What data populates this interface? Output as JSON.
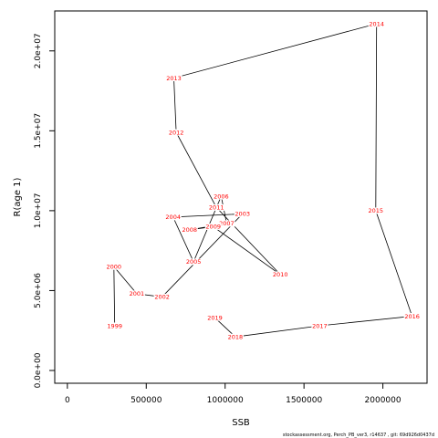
{
  "chart_data": {
    "type": "line",
    "xlabel": "SSB",
    "ylabel": "R(age 1)",
    "xlim": [
      -80000,
      2280000
    ],
    "ylim": [
      -800000,
      22500000
    ],
    "x_ticks": [
      0,
      500000,
      1000000,
      1500000,
      2000000
    ],
    "x_tick_labels": [
      "0",
      "500000",
      "1000000",
      "1500000",
      "2000000"
    ],
    "y_ticks": [
      0,
      5000000,
      10000000,
      15000000,
      20000000
    ],
    "y_tick_labels": [
      "0.0e+00",
      "5.0e+06",
      "1.0e+07",
      "1.5e+07",
      "2.0e+07"
    ],
    "grid": false,
    "line_color": "#000000",
    "label_color": "#ff0000",
    "points": [
      {
        "label": "1999",
        "x": 300000,
        "y": 2800000
      },
      {
        "label": "2000",
        "x": 295000,
        "y": 6500000
      },
      {
        "label": "2001",
        "x": 440000,
        "y": 4800000
      },
      {
        "label": "2002",
        "x": 600000,
        "y": 4600000
      },
      {
        "label": "2003",
        "x": 1110000,
        "y": 9800000
      },
      {
        "label": "2004",
        "x": 670000,
        "y": 9600000
      },
      {
        "label": "2005",
        "x": 800000,
        "y": 6800000
      },
      {
        "label": "2006",
        "x": 975000,
        "y": 10900000
      },
      {
        "label": "2007",
        "x": 1010000,
        "y": 9200000
      },
      {
        "label": "2008",
        "x": 775000,
        "y": 8800000
      },
      {
        "label": "2009",
        "x": 925000,
        "y": 9000000
      },
      {
        "label": "2010",
        "x": 1350000,
        "y": 6000000
      },
      {
        "label": "2011",
        "x": 945000,
        "y": 10200000
      },
      {
        "label": "2012",
        "x": 690000,
        "y": 14900000
      },
      {
        "label": "2013",
        "x": 675000,
        "y": 18300000
      },
      {
        "label": "2014",
        "x": 1960000,
        "y": 21700000
      },
      {
        "label": "2015",
        "x": 1955000,
        "y": 10000000
      },
      {
        "label": "2016",
        "x": 2185000,
        "y": 3400000
      },
      {
        "label": "2017",
        "x": 1600000,
        "y": 2800000
      },
      {
        "label": "2018",
        "x": 1065000,
        "y": 2100000
      },
      {
        "label": "2019",
        "x": 935000,
        "y": 3300000
      }
    ],
    "footer": "stockassessment.org, Perch_PB_ver3, r14637 , git: 69d926d0437d"
  }
}
